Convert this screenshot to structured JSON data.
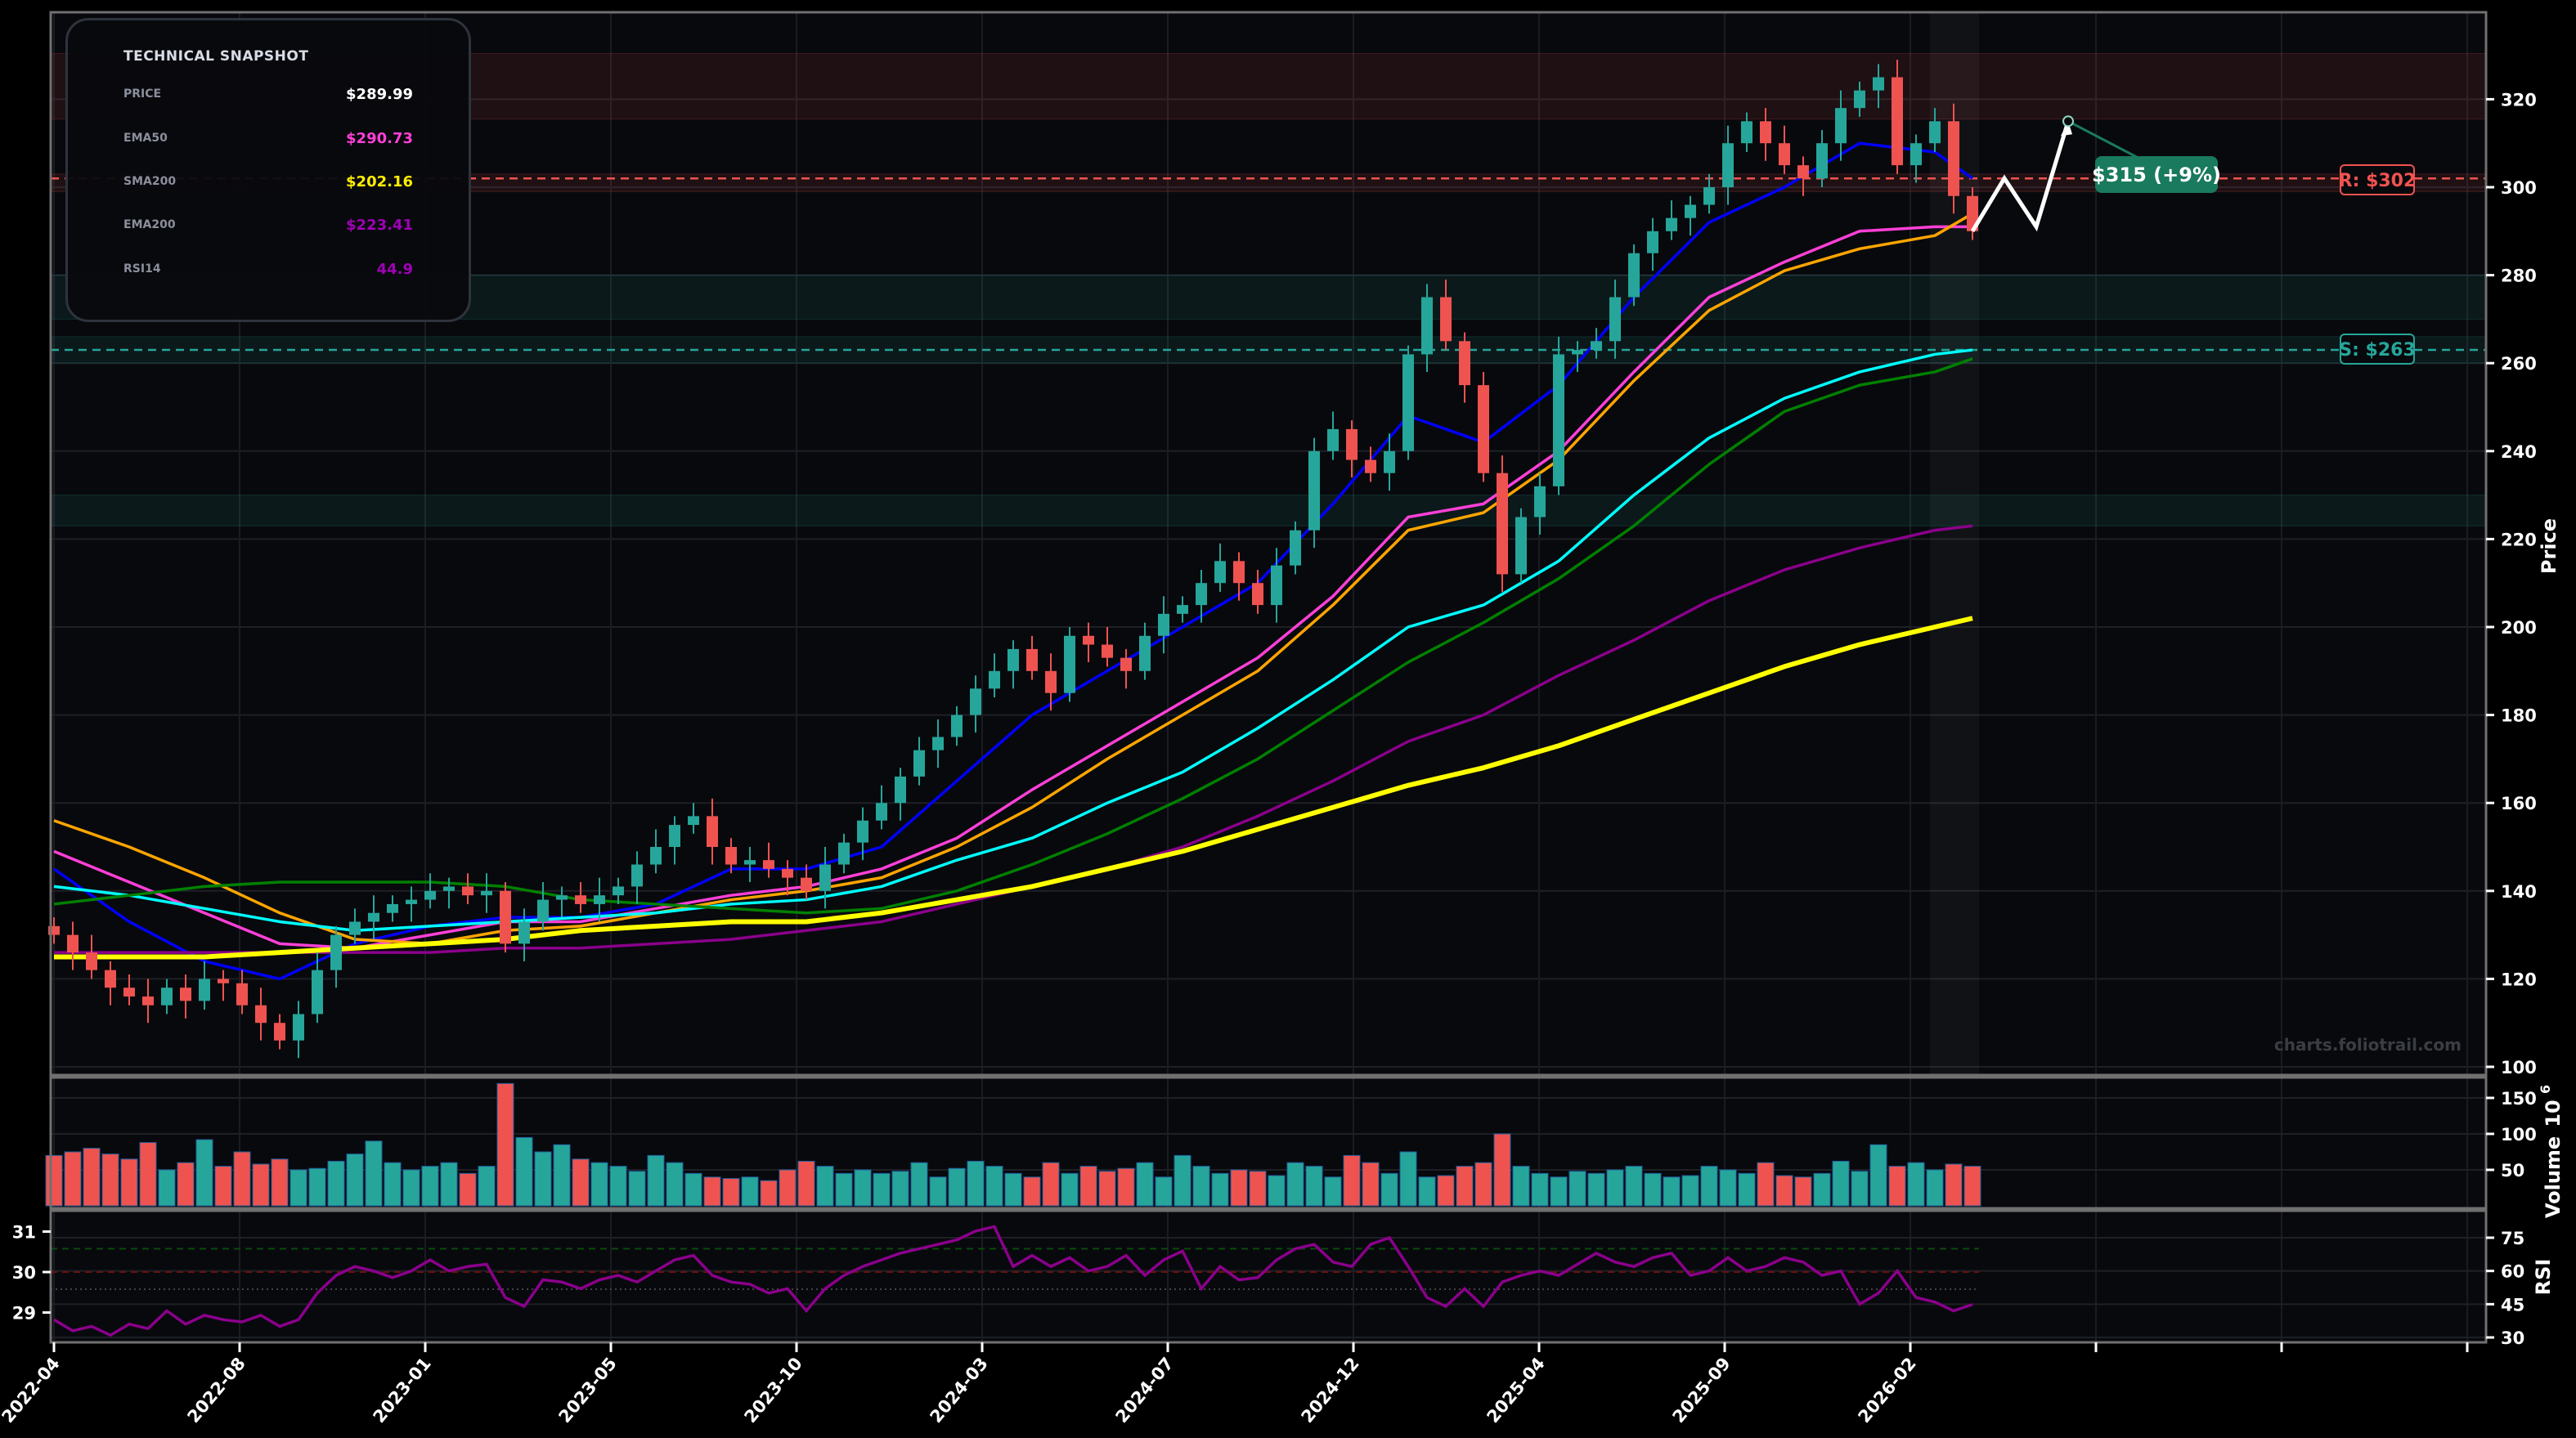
{
  "snapshot": {
    "title": "TECHNICAL SNAPSHOT",
    "rows": [
      {
        "label": "PRICE",
        "value": "$289.99",
        "color": "#ffffff"
      },
      {
        "label": "EMA50",
        "value": "$290.73",
        "color": "#ff40d8"
      },
      {
        "label": "SMA200",
        "value": "$202.16",
        "color": "#ffee00"
      },
      {
        "label": "EMA200",
        "value": "$223.41",
        "color": "#a000b8"
      },
      {
        "label": "RSI14",
        "value": "44.9",
        "color": "#a000b8"
      }
    ]
  },
  "watermark": "charts.foliotrail.com",
  "chart_data": {
    "type": "candlestick",
    "x_tick_labels": [
      "2022-04",
      "2022-08",
      "2023-01",
      "2023-05",
      "2023-10",
      "2024-03",
      "2024-07",
      "2024-12",
      "2025-04",
      "2025-09",
      "2026-02"
    ],
    "price_axis": {
      "label": "Price",
      "ylim": [
        100,
        332
      ],
      "ticks": [
        100,
        120,
        140,
        160,
        180,
        200,
        220,
        240,
        260,
        280,
        300,
        320
      ]
    },
    "volume_axis": {
      "label": "Volume",
      "exponent": "10",
      "exponent_power": "6",
      "ticks": [
        50,
        100,
        150
      ],
      "top_tick_label": "100"
    },
    "rsi_axis": {
      "label": "RSI",
      "right_ticks": [
        30,
        45,
        60,
        75
      ],
      "left_ticks": [
        29,
        30,
        31
      ]
    },
    "closes": [
      130,
      126,
      122,
      118,
      116,
      114,
      118,
      115,
      120,
      119,
      114,
      110,
      106,
      112,
      122,
      130,
      133,
      135,
      137,
      138,
      140,
      141,
      139,
      140,
      128,
      133,
      138,
      139,
      137,
      139,
      141,
      146,
      150,
      155,
      157,
      150,
      146,
      147,
      145,
      143,
      140,
      146,
      151,
      156,
      160,
      166,
      172,
      175,
      180,
      186,
      190,
      195,
      190,
      185,
      198,
      196,
      193,
      190,
      198,
      203,
      205,
      210,
      215,
      210,
      205,
      214,
      222,
      240,
      245,
      238,
      235,
      240,
      262,
      275,
      265,
      255,
      235,
      212,
      225,
      232,
      262,
      263,
      265,
      275,
      285,
      290,
      293,
      296,
      300,
      310,
      315,
      310,
      305,
      302,
      310,
      318,
      322,
      325,
      305,
      310,
      315,
      298,
      290
    ],
    "volume": [
      70,
      75,
      80,
      72,
      65,
      88,
      50,
      60,
      92,
      55,
      75,
      58,
      65,
      50,
      52,
      62,
      72,
      90,
      60,
      50,
      55,
      60,
      45,
      55,
      170,
      95,
      75,
      85,
      65,
      60,
      55,
      48,
      70,
      60,
      45,
      40,
      38,
      40,
      35,
      50,
      62,
      55,
      45,
      50,
      45,
      48,
      60,
      40,
      52,
      62,
      55,
      45,
      40,
      60,
      45,
      55,
      48,
      52,
      60,
      40,
      70,
      55,
      45,
      50,
      48,
      42,
      60,
      55,
      40,
      70,
      60,
      45,
      75,
      40,
      42,
      55,
      60,
      100,
      55,
      45,
      40,
      48,
      45,
      50,
      55,
      45,
      40,
      42,
      55,
      50,
      45,
      60,
      42,
      40,
      45,
      62,
      48,
      85,
      55,
      60,
      50,
      58,
      55
    ],
    "rsi": [
      38,
      33,
      35,
      31,
      36,
      34,
      42,
      36,
      40,
      38,
      37,
      40,
      35,
      38,
      50,
      58,
      62,
      60,
      57,
      60,
      65,
      60,
      62,
      63,
      48,
      44,
      56,
      55,
      52,
      56,
      58,
      55,
      60,
      65,
      67,
      58,
      55,
      54,
      50,
      52,
      42,
      52,
      58,
      62,
      65,
      68,
      70,
      72,
      74,
      78,
      80,
      62,
      67,
      62,
      66,
      60,
      62,
      67,
      58,
      65,
      69,
      52,
      62,
      56,
      57,
      65,
      70,
      72,
      64,
      62,
      72,
      75,
      62,
      48,
      44,
      52,
      44,
      55,
      58,
      60,
      58,
      63,
      68,
      64,
      62,
      66,
      68,
      58,
      60,
      66,
      60,
      62,
      66,
      64,
      58,
      60,
      45,
      50,
      60,
      48,
      46,
      42,
      44.9
    ],
    "lines": [
      {
        "color": "#0000ff",
        "values": [
          145,
          133,
          124,
          120,
          128,
          132,
          134,
          134,
          137,
          145,
          145,
          150,
          165,
          180,
          190,
          200,
          210,
          228,
          248,
          242,
          255,
          275,
          292,
          300,
          310,
          308,
          302
        ]
      },
      {
        "color": "#ff40d8",
        "values": [
          149,
          142,
          135,
          128,
          127,
          130,
          133,
          133,
          136,
          139,
          141,
          145,
          152,
          163,
          173,
          183,
          193,
          207,
          225,
          228,
          240,
          258,
          275,
          283,
          290,
          291,
          291
        ]
      },
      {
        "color": "#ffa500",
        "values": [
          156,
          150,
          143,
          135,
          129,
          128,
          131,
          132,
          135,
          138,
          140,
          143,
          150,
          159,
          170,
          180,
          190,
          205,
          222,
          226,
          238,
          256,
          272,
          281,
          286,
          289,
          294
        ]
      },
      {
        "color": "#00ffff",
        "values": [
          141,
          139,
          136,
          133,
          131,
          132,
          133,
          134,
          135,
          137,
          138,
          141,
          147,
          152,
          160,
          167,
          177,
          188,
          200,
          205,
          215,
          230,
          243,
          252,
          258,
          262,
          263
        ]
      },
      {
        "color": "#008000",
        "values": [
          137,
          139,
          141,
          142,
          142,
          142,
          141,
          138,
          137,
          136,
          135,
          136,
          140,
          146,
          153,
          161,
          170,
          181,
          192,
          201,
          211,
          223,
          237,
          249,
          255,
          258,
          261
        ]
      },
      {
        "color": "#8b008b",
        "values": [
          126,
          126,
          126,
          126,
          126,
          126,
          127,
          127,
          128,
          129,
          131,
          133,
          137,
          141,
          145,
          150,
          157,
          165,
          174,
          180,
          189,
          197,
          206,
          213,
          218,
          222,
          223
        ]
      },
      {
        "color": "#ffff00",
        "values": [
          125,
          125,
          125,
          126,
          127,
          128,
          129,
          131,
          132,
          133,
          133,
          135,
          138,
          141,
          145,
          149,
          154,
          159,
          164,
          168,
          173,
          179,
          185,
          191,
          196,
          200,
          202
        ]
      }
    ],
    "zones": [
      {
        "kind": "resistance",
        "range": [
          315.5,
          330.4
        ]
      },
      {
        "kind": "resistance",
        "range": [
          299,
          303
        ]
      },
      {
        "kind": "support",
        "range": [
          270,
          280
        ]
      },
      {
        "kind": "support",
        "range": [
          260,
          266
        ]
      },
      {
        "kind": "support",
        "range": [
          223,
          230
        ]
      }
    ],
    "resistance": {
      "value": 302,
      "label": "R: $302",
      "color": "#ef5350"
    },
    "support": {
      "value": 263,
      "label": "S: $263",
      "color": "#26a69a"
    },
    "forecast": {
      "path": [
        290,
        302,
        291,
        315
      ],
      "label": "$315 (+9%)",
      "color": "#1a7a5e"
    },
    "up_color": "#26a69a",
    "down_color": "#ef5350"
  }
}
